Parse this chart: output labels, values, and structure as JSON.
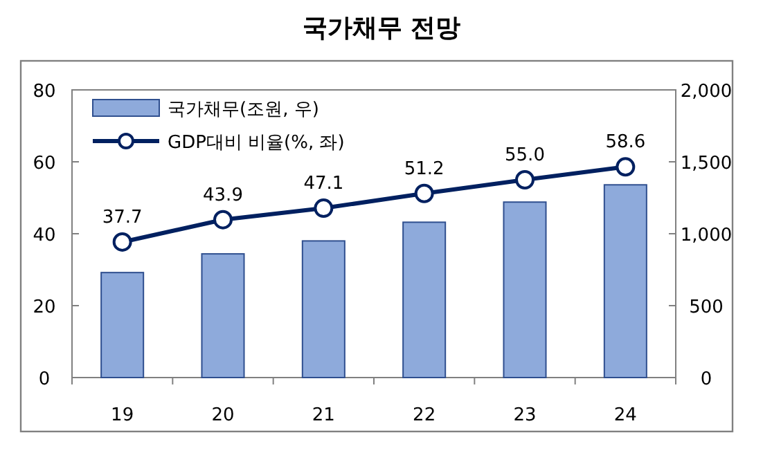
{
  "chart_data": {
    "type": "bar",
    "title": "국가채무 전망",
    "categories": [
      "19",
      "20",
      "21",
      "22",
      "23",
      "24"
    ],
    "series": [
      {
        "name": "국가채무(조원, 우)",
        "axis": "y2",
        "color": "#8eaadb",
        "values": [
          730,
          860,
          950,
          1080,
          1220,
          1340
        ]
      },
      {
        "name": "GDP대비 비율(%, 좌)",
        "type": "line",
        "axis": "y",
        "color": "#002060",
        "marker": "circle",
        "values": [
          37.7,
          43.9,
          47.1,
          51.2,
          55.0,
          58.6
        ],
        "value_labels": [
          "37.7",
          "43.9",
          "47.1",
          "51.2",
          "55.0",
          "58.6"
        ]
      }
    ],
    "ylim": [
      0,
      80
    ],
    "yticks": [
      0,
      20,
      40,
      60,
      80
    ],
    "y2lim": [
      0,
      2000
    ],
    "y2ticks": [
      {
        "value": 0,
        "label": "0"
      },
      {
        "value": 500,
        "label": "500"
      },
      {
        "value": 1000,
        "label": "1,000"
      },
      {
        "value": 1500,
        "label": "1,500"
      },
      {
        "value": 2000,
        "label": "2,000"
      }
    ],
    "grid": false,
    "legend": "top left"
  }
}
